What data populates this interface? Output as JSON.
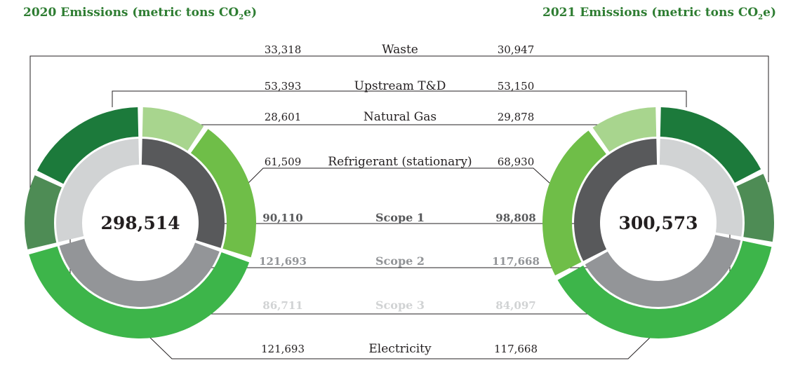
{
  "titles": {
    "left": {
      "main": "2020 Emissions (metric tons CO",
      "sub": "2",
      "end": "e)"
    },
    "right": {
      "main": "2021 Emissions (metric tons CO",
      "sub": "2",
      "end": "e)"
    }
  },
  "colors": {
    "dark_green": "#1c7a3b",
    "mid_green": "#4e8c55",
    "bright_green": "#3db54a",
    "light_green": "#6fbe48",
    "pale_green": "#a8d58e",
    "dark_gray": "#58595b",
    "mid_gray": "#939598",
    "light_gray": "#d1d3d4",
    "line": "#231f20"
  },
  "chart_data": {
    "type": "donut",
    "years": [
      "2020",
      "2021"
    ],
    "totals": {
      "2020": "298,514",
      "2021": "300,573"
    },
    "outer_ring_categories": [
      {
        "name": "Waste",
        "label_2020": "33,318",
        "label_2021": "30,947",
        "v2020": 33318,
        "v2021": 30947,
        "color": "mid_green"
      },
      {
        "name": "Upstream T&D",
        "label_2020": "53,393",
        "label_2021": "53,150",
        "v2020": 53393,
        "v2021": 53150,
        "color": "dark_green"
      },
      {
        "name": "Natural Gas",
        "label_2020": "28,601",
        "label_2021": "29,878",
        "v2020": 28601,
        "v2021": 29878,
        "color": "pale_green"
      },
      {
        "name": "Refrigerant (stationary)",
        "label_2020": "61,509",
        "label_2021": "68,930",
        "v2020": 61509,
        "v2021": 68930,
        "color": "light_green"
      },
      {
        "name": "Electricity",
        "label_2020": "121,693",
        "label_2021": "117,668",
        "v2020": 121693,
        "v2021": 117668,
        "color": "bright_green"
      }
    ],
    "inner_ring_scopes": [
      {
        "name": "Scope 1",
        "label_2020": "90,110",
        "label_2021": "98,808",
        "v2020": 90110,
        "v2021": 98808,
        "color": "dark_gray"
      },
      {
        "name": "Scope 2",
        "label_2020": "121,693",
        "label_2021": "117,668",
        "v2020": 121693,
        "v2021": 117668,
        "color": "mid_gray"
      },
      {
        "name": "Scope 3",
        "label_2020": "86,711",
        "label_2021": "84,097",
        "v2020": 86711,
        "v2021": 84097,
        "color": "light_gray"
      }
    ]
  }
}
